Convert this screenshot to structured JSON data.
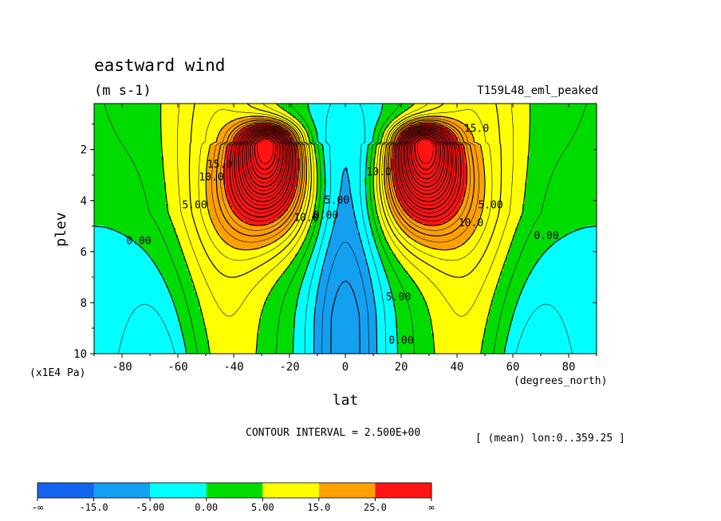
{
  "chart_data": {
    "type": "heatmap",
    "title": "eastward wind",
    "units": "(m s-1)",
    "dataset": "T159L48_eml_peaked",
    "xlabel": "lat",
    "ylabel": "plev",
    "x_units": "(degrees_north)",
    "y_units": "(x1E4 Pa)",
    "xlim": [
      -90,
      90
    ],
    "ylim": [
      0.2,
      10
    ],
    "x_ticks": [
      "-80",
      "-60",
      "-40",
      "-20",
      "0",
      "20",
      "40",
      "60",
      "80"
    ],
    "x_tick_values": [
      -80,
      -60,
      -40,
      -20,
      0,
      20,
      40,
      60,
      80
    ],
    "y_ticks": [
      "2",
      "4",
      "6",
      "8",
      "10"
    ],
    "y_tick_values": [
      2,
      4,
      6,
      8,
      10
    ],
    "contour_interval": "CONTOUR INTERVAL = 2.500E+00",
    "mean_note": "[ (mean) lon:0..359.25 ]",
    "jets": [
      {
        "lat": -28,
        "plev": 1.8,
        "peak": 60
      },
      {
        "lat": 28,
        "plev": 1.8,
        "peak": 60
      }
    ],
    "contour_labels": [
      {
        "text": "0.00",
        "lat": -74,
        "plev": 5.6
      },
      {
        "text": "5.00",
        "lat": -54,
        "plev": 4.2
      },
      {
        "text": "10.0",
        "lat": -48,
        "plev": 3.1
      },
      {
        "text": "15.0",
        "lat": -45,
        "plev": 2.6
      },
      {
        "text": "10.0",
        "lat": -14,
        "plev": 4.7
      },
      {
        "text": "0.00",
        "lat": -7,
        "plev": 4.6
      },
      {
        "text": "5.00",
        "lat": -3,
        "plev": 4.0
      },
      {
        "text": "10.0",
        "lat": 12,
        "plev": 2.9
      },
      {
        "text": "5.00",
        "lat": 19,
        "plev": 7.8
      },
      {
        "text": "0.00",
        "lat": 20,
        "plev": 9.5
      },
      {
        "text": "10.0",
        "lat": 45,
        "plev": 4.9
      },
      {
        "text": "15.0",
        "lat": 47,
        "plev": 1.2
      },
      {
        "text": "5.00",
        "lat": 52,
        "plev": 4.2
      },
      {
        "text": "0.00",
        "lat": 72,
        "plev": 5.4
      }
    ],
    "colorbar": {
      "colors": [
        "#1464f0",
        "#14a0f0",
        "#00ffff",
        "#00dc00",
        "#ffff00",
        "#ffa000",
        "#ff1414"
      ],
      "labels": [
        "-∞",
        "-15.0",
        "-5.00",
        "0.00",
        "5.00",
        "15.0",
        "25.0",
        "∞"
      ],
      "bounds": [
        -60,
        -15,
        -5,
        0,
        5,
        15,
        25,
        70
      ]
    }
  }
}
